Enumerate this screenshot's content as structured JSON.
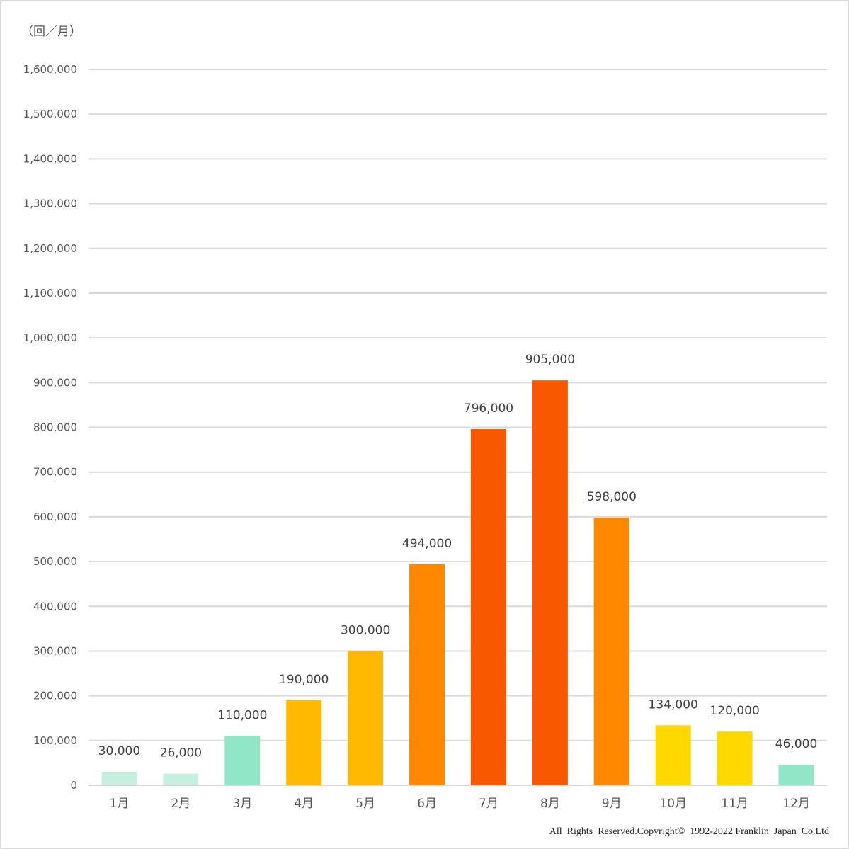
{
  "unit_label": "（回／月）",
  "copyright": "All  Rights  Reserved.Copyright©  1992-2022 Franklin  Japan  Co.Ltd",
  "colors": {
    "grid": "#d9d9d9",
    "axis_text": "#555555",
    "data_label": "#404040",
    "bars": [
      "#c6efe0",
      "#c6efe0",
      "#92e6c8",
      "#ffb900",
      "#ffb900",
      "#ff8800",
      "#f85800",
      "#f85800",
      "#ff8800",
      "#ffd800",
      "#ffd800",
      "#92e6c8"
    ]
  },
  "chart_data": {
    "type": "bar",
    "title": "",
    "xlabel": "",
    "ylabel": "（回／月）",
    "categories": [
      "1月",
      "2月",
      "3月",
      "4月",
      "5月",
      "6月",
      "7月",
      "8月",
      "9月",
      "10月",
      "11月",
      "12月"
    ],
    "values": [
      30000,
      26000,
      110000,
      190000,
      300000,
      494000,
      796000,
      905000,
      598000,
      134000,
      120000,
      46000
    ],
    "data_labels": [
      "30,000",
      "26,000",
      "110,000",
      "190,000",
      "300,000",
      "494,000",
      "796,000",
      "905,000",
      "598,000",
      "134,000",
      "120,000",
      "46,000"
    ],
    "ylim": [
      0,
      1600000
    ],
    "yticks": [
      0,
      100000,
      200000,
      300000,
      400000,
      500000,
      600000,
      700000,
      800000,
      900000,
      1000000,
      1100000,
      1200000,
      1300000,
      1400000,
      1500000,
      1600000
    ],
    "ytick_labels": [
      "0",
      "100,000",
      "200,000",
      "300,000",
      "400,000",
      "500,000",
      "600,000",
      "700,000",
      "800,000",
      "900,000",
      "1,000,000",
      "1,100,000",
      "1,200,000",
      "1,300,000",
      "1,400,000",
      "1,500,000",
      "1,600,000"
    ],
    "grid": true,
    "legend": "none"
  }
}
